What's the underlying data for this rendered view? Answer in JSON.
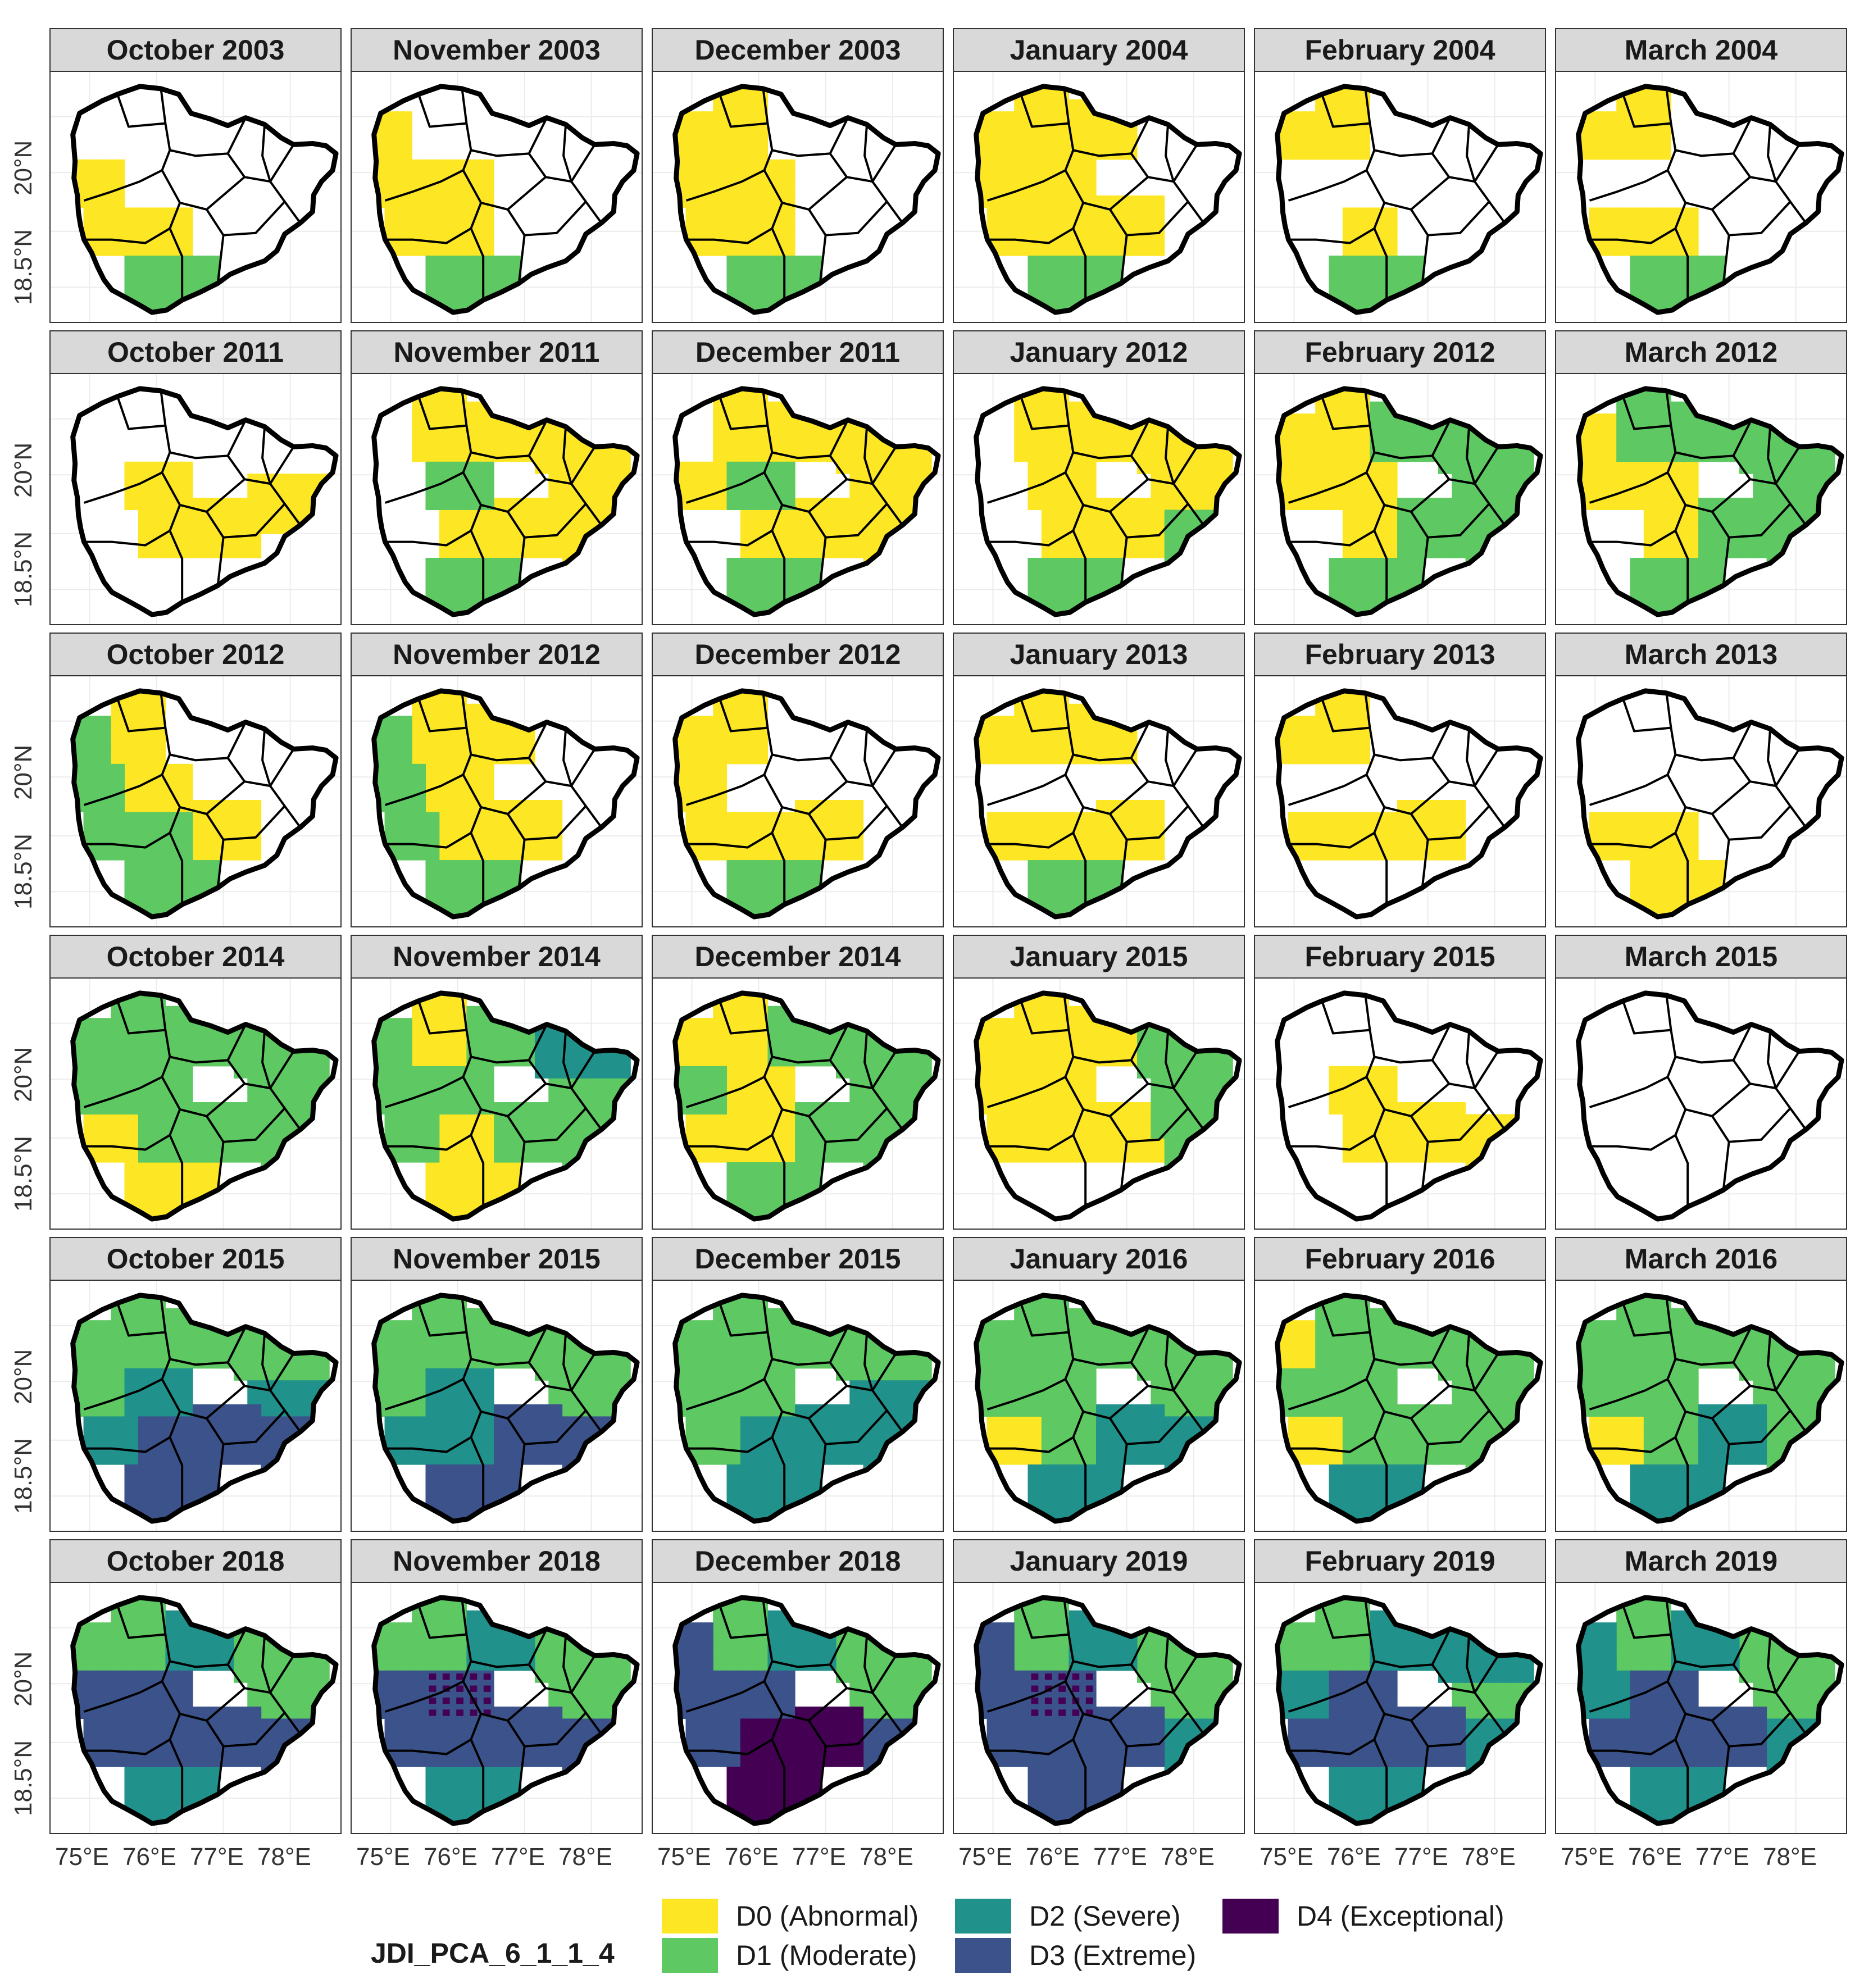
{
  "colors": {
    "D0": "#fde725",
    "D1": "#5ec962",
    "D2": "#21918c",
    "D3": "#3b528b",
    "D4": "#440154",
    "none": "#ffffff",
    "gridline": "#ececec",
    "outline": "#000000"
  },
  "axes": {
    "y_ticks": [
      "20°N",
      "18.5°N"
    ],
    "x_ticks": [
      "75°E",
      "76°E",
      "77°E",
      "78°E"
    ]
  },
  "legend": {
    "title": "JDI_PCA_6_1_1_4",
    "items": [
      {
        "key": "D0",
        "label": "D0 (Abnormal)"
      },
      {
        "key": "D1",
        "label": "D1 (Moderate)"
      },
      {
        "key": "D2",
        "label": "D2 (Severe)"
      },
      {
        "key": "D3",
        "label": "D3 (Extreme)"
      },
      {
        "key": "D4",
        "label": "D4 (Exceptional)"
      }
    ]
  },
  "panels": [
    {
      "title": "October 2003",
      "classes": {
        "D0": "W,SW,S",
        "D1": "SS"
      }
    },
    {
      "title": "November 2003",
      "classes": {
        "D0": "NW,W,C,SW,S",
        "D1": "SS"
      }
    },
    {
      "title": "December 2003",
      "classes": {
        "D0": "NW,N,W,C,SW,S",
        "D1": "SS"
      }
    },
    {
      "title": "January 2004",
      "classes": {
        "D0": "NW,N,NC,W,C,SW,S,SC",
        "D1": "SS"
      }
    },
    {
      "title": "February 2004",
      "classes": {
        "D0": "NW,N,S",
        "D1": "SS"
      }
    },
    {
      "title": "March 2004",
      "classes": {
        "D0": "NW,N,SW,S",
        "D1": "SS"
      }
    },
    {
      "title": "October 2011",
      "classes": {
        "D0": "C,E,SC,S"
      }
    },
    {
      "title": "November 2011",
      "classes": {
        "D0": "N,NC,NE,C,E,S,SC,SE",
        "D1": "C,SS"
      }
    },
    {
      "title": "December 2011",
      "classes": {
        "D0": "N,NC,NE,C,E,S,SC,SE,W",
        "D1": "C,SS"
      }
    },
    {
      "title": "January 2012",
      "classes": {
        "D0": "N,NC,NE,C,E,S,SC,SE",
        "D1": "SS,SE"
      }
    },
    {
      "title": "February 2012",
      "classes": {
        "D0": "NW,N,W,C,S",
        "D1": "NC,NE,E,SC,SE,SS"
      }
    },
    {
      "title": "March 2012",
      "classes": {
        "D0": "NW,W,C,S",
        "D1": "N,NC,NE,E,SC,SE,SS"
      }
    },
    {
      "title": "October 2012",
      "classes": {
        "D0": "N,C,SC",
        "D1": "NW,W,SW,S,SS"
      }
    },
    {
      "title": "November 2012",
      "classes": {
        "D0": "N,C,NC,SC,S",
        "D1": "NW,W,SW,SS"
      }
    },
    {
      "title": "December 2012",
      "classes": {
        "D0": "NW,N,W,SW,S,SC",
        "D1": "SS"
      }
    },
    {
      "title": "January 2013",
      "classes": {
        "D0": "NW,N,NC,SW,S,SC",
        "D1": "SS"
      }
    },
    {
      "title": "February 2013",
      "classes": {
        "D0": "NW,N,SW,S,SC"
      }
    },
    {
      "title": "March 2013",
      "classes": {
        "D0": "SW,S,SS"
      }
    },
    {
      "title": "October 2014",
      "classes": {
        "D0": "SW,SS",
        "D1": "NW,N,NC,NE,W,C,E,S,SC,SE"
      }
    },
    {
      "title": "November 2014",
      "classes": {
        "D0": "N,S,SS",
        "D1": "NW,NC,NE,W,C,E,SW,SC,SE",
        "D2": "NE"
      }
    },
    {
      "title": "December 2014",
      "classes": {
        "D0": "NW,N,SW,S,C",
        "D1": "NC,NE,W,E,SC,SE,SS"
      }
    },
    {
      "title": "January 2015",
      "classes": {
        "D0": "NW,N,NC,W,C,SW,S,SC",
        "D1": "NE,E,SE"
      }
    },
    {
      "title": "February 2015",
      "classes": {
        "D0": "C,SC,SE,S"
      }
    },
    {
      "title": "March 2015",
      "classes": {}
    },
    {
      "title": "October 2015",
      "classes": {
        "D1": "NW,N,NC,NE,W",
        "D2": "C,SW,E",
        "D3": "S,SC,SE,SS"
      }
    },
    {
      "title": "November 2015",
      "classes": {
        "D1": "NW,N,NC,NE,W,E",
        "D2": "C,SW,S",
        "D3": "SC,SE,SS"
      }
    },
    {
      "title": "December 2015",
      "classes": {
        "D1": "NW,N,NC,NE,W,C,SW",
        "D2": "E,S,SC,SE,SS"
      }
    },
    {
      "title": "January 2016",
      "classes": {
        "D0": "SW",
        "D1": "NW,N,NC,NE,W,C,S,E",
        "D2": "SC,SE,SS"
      }
    },
    {
      "title": "February 2016",
      "classes": {
        "D0": "NW,SW",
        "D1": "N,NC,NE,W,C,E,S,SC,SE",
        "D2": "SS"
      }
    },
    {
      "title": "March 2016",
      "classes": {
        "D0": "SW",
        "D1": "NW,N,NC,NE,W,C,E,S,SE",
        "D2": "SC,SS"
      }
    },
    {
      "title": "October 2018",
      "classes": {
        "D1": "NW,N,NE,E",
        "D2": "NC,SS",
        "D3": "W,C,SW,S,SC,SE"
      }
    },
    {
      "title": "November 2018",
      "classes": {
        "D1": "NW,N,NE,E",
        "D2": "NC,SS",
        "D3": "W,C,SW,S,SC,SE",
        "D4": "C"
      }
    },
    {
      "title": "December 2018",
      "classes": {
        "D1": "N,NE,E",
        "D2": "NC",
        "D3": "NW,W,C,SW,SE",
        "D4": "S,SC,SS"
      }
    },
    {
      "title": "January 2019",
      "classes": {
        "D1": "N,NE,E",
        "D2": "NC,SE",
        "D3": "NW,W,C,SW,S,SC,SS",
        "D4": "C"
      }
    },
    {
      "title": "February 2019",
      "classes": {
        "D1": "NW,N,E",
        "D2": "NC,NE,W,SE,SS",
        "D3": "C,SW,S,SC"
      }
    },
    {
      "title": "March 2019",
      "classes": {
        "D1": "N,NE,E",
        "D2": "NW,NC,W,SE,SS",
        "D3": "C,SW,S,SC"
      }
    }
  ]
}
